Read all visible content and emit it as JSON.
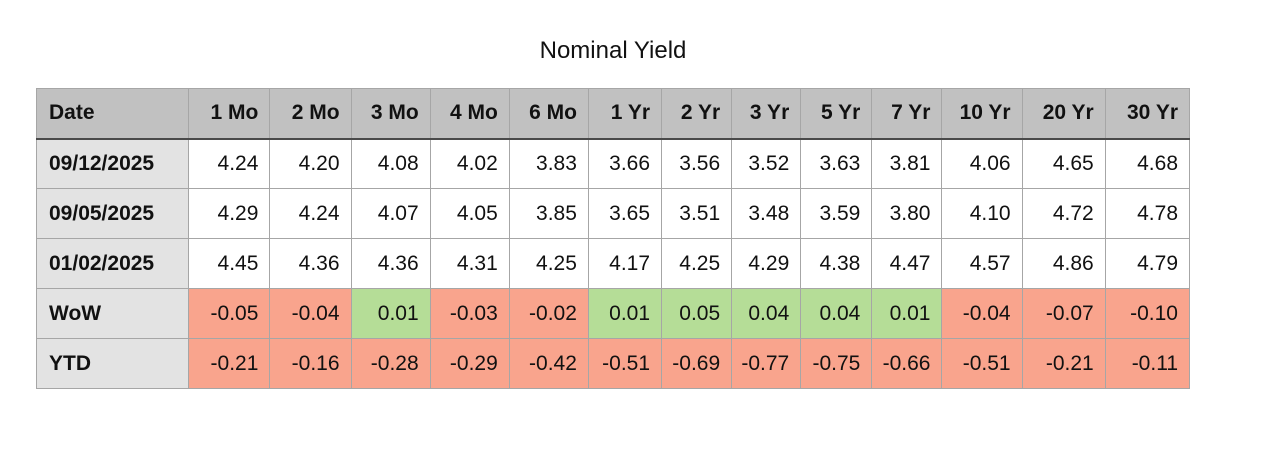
{
  "title": "Nominal Yield",
  "colors": {
    "header_bg": "#c1c1c1",
    "label_bg": "#e3e3e3",
    "positive_bg": "#b5dd97",
    "negative_bg": "#f9a48d"
  },
  "table": {
    "columns": [
      "Date",
      "1 Mo",
      "2 Mo",
      "3 Mo",
      "4 Mo",
      "6 Mo",
      "1 Yr",
      "2 Yr",
      "3 Yr",
      "5 Yr",
      "7 Yr",
      "10 Yr",
      "20 Yr",
      "30 Yr"
    ],
    "rows": [
      {
        "label": "09/12/2025",
        "colored": false,
        "values": [
          "4.24",
          "4.20",
          "4.08",
          "4.02",
          "3.83",
          "3.66",
          "3.56",
          "3.52",
          "3.63",
          "3.81",
          "4.06",
          "4.65",
          "4.68"
        ]
      },
      {
        "label": "09/05/2025",
        "colored": false,
        "values": [
          "4.29",
          "4.24",
          "4.07",
          "4.05",
          "3.85",
          "3.65",
          "3.51",
          "3.48",
          "3.59",
          "3.80",
          "4.10",
          "4.72",
          "4.78"
        ]
      },
      {
        "label": "01/02/2025",
        "colored": false,
        "values": [
          "4.45",
          "4.36",
          "4.36",
          "4.31",
          "4.25",
          "4.17",
          "4.25",
          "4.29",
          "4.38",
          "4.47",
          "4.57",
          "4.86",
          "4.79"
        ]
      },
      {
        "label": "WoW",
        "colored": true,
        "values": [
          "-0.05",
          "-0.04",
          "0.01",
          "-0.03",
          "-0.02",
          "0.01",
          "0.05",
          "0.04",
          "0.04",
          "0.01",
          "-0.04",
          "-0.07",
          "-0.10"
        ]
      },
      {
        "label": "YTD",
        "colored": true,
        "values": [
          "-0.21",
          "-0.16",
          "-0.28",
          "-0.29",
          "-0.42",
          "-0.51",
          "-0.69",
          "-0.77",
          "-0.75",
          "-0.66",
          "-0.51",
          "-0.21",
          "-0.11"
        ]
      }
    ]
  },
  "chart_data": {
    "type": "table",
    "title": "Nominal Yield",
    "columns": [
      "Date",
      "1 Mo",
      "2 Mo",
      "3 Mo",
      "4 Mo",
      "6 Mo",
      "1 Yr",
      "2 Yr",
      "3 Yr",
      "5 Yr",
      "7 Yr",
      "10 Yr",
      "20 Yr",
      "30 Yr"
    ],
    "rows": [
      {
        "label": "09/12/2025",
        "values": [
          4.24,
          4.2,
          4.08,
          4.02,
          3.83,
          3.66,
          3.56,
          3.52,
          3.63,
          3.81,
          4.06,
          4.65,
          4.68
        ]
      },
      {
        "label": "09/05/2025",
        "values": [
          4.29,
          4.24,
          4.07,
          4.05,
          3.85,
          3.65,
          3.51,
          3.48,
          3.59,
          3.8,
          4.1,
          4.72,
          4.78
        ]
      },
      {
        "label": "01/02/2025",
        "values": [
          4.45,
          4.36,
          4.36,
          4.31,
          4.25,
          4.17,
          4.25,
          4.29,
          4.38,
          4.47,
          4.57,
          4.86,
          4.79
        ]
      },
      {
        "label": "WoW",
        "values": [
          -0.05,
          -0.04,
          0.01,
          -0.03,
          -0.02,
          0.01,
          0.05,
          0.04,
          0.04,
          0.01,
          -0.04,
          -0.07,
          -0.1
        ]
      },
      {
        "label": "YTD",
        "values": [
          -0.21,
          -0.16,
          -0.28,
          -0.29,
          -0.42,
          -0.51,
          -0.69,
          -0.77,
          -0.75,
          -0.66,
          -0.51,
          -0.21,
          -0.11
        ]
      }
    ],
    "legend": "WoW and YTD cells: green background = positive change, salmon background = negative change"
  }
}
